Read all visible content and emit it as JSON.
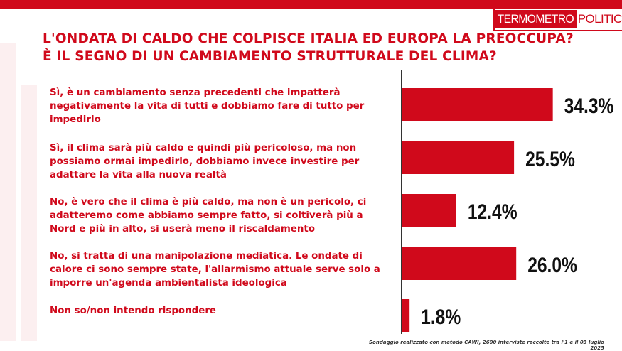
{
  "brand": {
    "logo_part1": "TERMOMETRO",
    "logo_part2": "POLITICO"
  },
  "colors": {
    "accent": "#d0091b",
    "text_dark": "#111111"
  },
  "chart_data": {
    "type": "bar",
    "orientation": "horizontal",
    "title": "L'ONDATA DI CALDO CHE COLPISCE ITALIA ED EUROPA LA PREOCCUPA? È IL SEGNO DI UN CAMBIAMENTO STRUTTURALE DEL CLIMA?",
    "categories": [
      "Sì, è un cambiamento senza precedenti che impatterà negativamente la vita di tutti e dobbiamo fare di tutto per impedirlo",
      "Sì, il clima sarà più caldo e quindi più pericoloso, ma non possiamo ormai impedirlo, dobbiamo invece investire per adattare la vita alla nuova realtà",
      "No, è vero che il clima è più caldo, ma non è un pericolo, ci adatteremo come abbiamo sempre fatto, si coltiverà più a Nord e più in alto, si userà meno il riscaldamento",
      "No, si tratta di una manipolazione mediatica. Le ondate di calore ci sono sempre state, l'allarmismo attuale serve solo a imporre un'agenda ambientalista ideologica",
      "Non so/non intendo rispondere"
    ],
    "values": [
      34.3,
      25.5,
      12.4,
      26.0,
      1.8
    ],
    "value_labels": [
      "34.3%",
      "25.5%",
      "12.4%",
      "26.0%",
      "1.8%"
    ],
    "unit": "%",
    "xlim": [
      0,
      40
    ],
    "grid": false,
    "legend": "none",
    "bar_color": "#d0091b"
  },
  "footnote": "Sondaggio realizzato con metodo CAWI, 2600 interviste raccolte tra l'1 e il 03 luglio 2025"
}
